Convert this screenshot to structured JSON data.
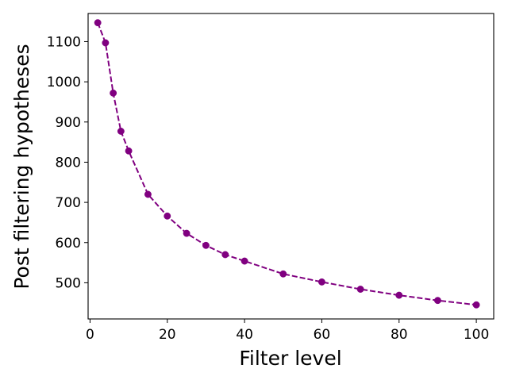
{
  "chart_data": {
    "type": "line",
    "title": "",
    "xlabel": "Filter level",
    "ylabel": "Post filtering hypotheses",
    "xlim": [
      -0.5,
      104.5
    ],
    "ylim": [
      410,
      1170
    ],
    "xticks": [
      0,
      20,
      40,
      60,
      80,
      100
    ],
    "yticks": [
      500,
      600,
      700,
      800,
      900,
      1000,
      1100
    ],
    "grid": false,
    "legend": "none",
    "series": [
      {
        "color": "#800080",
        "line_style": "dashed",
        "marker": "circle",
        "x": [
          2,
          4,
          6,
          8,
          10,
          15,
          20,
          25,
          30,
          35,
          40,
          50,
          60,
          70,
          80,
          90,
          100
        ],
        "y": [
          1147,
          1097,
          972,
          877,
          828,
          720,
          666,
          623,
          593,
          570,
          554,
          522,
          502,
          484,
          469,
          456,
          445
        ]
      }
    ]
  }
}
